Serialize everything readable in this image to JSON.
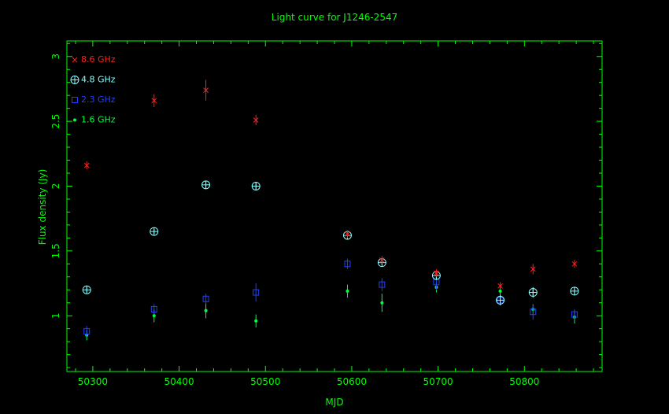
{
  "chart_data": {
    "type": "scatter",
    "title": "Light curve for J1246-2547",
    "xlabel": "MJD",
    "ylabel": "Flux density (Jy)",
    "xlim": [
      50270,
      50890
    ],
    "ylim": [
      0.57,
      3.12
    ],
    "xticks": [
      50300,
      50400,
      50500,
      50600,
      50700,
      50800
    ],
    "yticks": [
      1,
      1.5,
      2,
      2.5,
      3
    ],
    "x_tick_labels": [
      "50300",
      "50400",
      "50500",
      "50600",
      "50700",
      "50800"
    ],
    "y_tick_labels": [
      "1",
      "1.5",
      "2",
      "2.5",
      "3"
    ],
    "legend_position": "top-left",
    "colors": {
      "axes": "#00ff00",
      "background": "#000000"
    },
    "series": [
      {
        "name": "8.6 GHz",
        "color": "#ff2020",
        "marker": "x",
        "points": [
          {
            "x": 50293,
            "y": 2.16,
            "err": 0.03
          },
          {
            "x": 50371,
            "y": 2.66,
            "err": 0.05
          },
          {
            "x": 50431,
            "y": 2.74,
            "err": 0.08
          },
          {
            "x": 50489,
            "y": 2.51,
            "err": 0.04
          },
          {
            "x": 50595,
            "y": 1.63,
            "err": 0.03
          },
          {
            "x": 50635,
            "y": 1.43,
            "err": 0.03
          },
          {
            "x": 50698,
            "y": 1.33,
            "err": 0.03
          },
          {
            "x": 50772,
            "y": 1.23,
            "err": 0.03
          },
          {
            "x": 50810,
            "y": 1.36,
            "err": 0.04
          },
          {
            "x": 50858,
            "y": 1.4,
            "err": 0.03
          }
        ]
      },
      {
        "name": "4.8 GHz",
        "color": "#80ffff",
        "marker": "circle-plus",
        "points": [
          {
            "x": 50293,
            "y": 1.2,
            "err": 0.02
          },
          {
            "x": 50371,
            "y": 1.65,
            "err": 0.02
          },
          {
            "x": 50431,
            "y": 2.01,
            "err": 0.02
          },
          {
            "x": 50489,
            "y": 2.0,
            "err": 0.03
          },
          {
            "x": 50595,
            "y": 1.62,
            "err": 0.02
          },
          {
            "x": 50635,
            "y": 1.41,
            "err": 0.02
          },
          {
            "x": 50698,
            "y": 1.31,
            "err": 0.03
          },
          {
            "x": 50772,
            "y": 1.12,
            "err": 0.04
          },
          {
            "x": 50810,
            "y": 1.18,
            "err": 0.04
          },
          {
            "x": 50858,
            "y": 1.19,
            "err": 0.03
          }
        ]
      },
      {
        "name": "2.3 GHz",
        "color": "#2040ff",
        "marker": "square",
        "points": [
          {
            "x": 50293,
            "y": 0.88,
            "err": 0.04
          },
          {
            "x": 50371,
            "y": 1.05,
            "err": 0.04
          },
          {
            "x": 50431,
            "y": 1.13,
            "err": 0.04
          },
          {
            "x": 50489,
            "y": 1.18,
            "err": 0.07
          },
          {
            "x": 50595,
            "y": 1.4,
            "err": 0.04
          },
          {
            "x": 50635,
            "y": 1.24,
            "err": 0.05
          },
          {
            "x": 50698,
            "y": 1.26,
            "err": 0.06
          },
          {
            "x": 50772,
            "y": 1.12,
            "err": 0.03
          },
          {
            "x": 50810,
            "y": 1.03,
            "err": 0.06
          },
          {
            "x": 50858,
            "y": 1.01,
            "err": 0.04
          }
        ]
      },
      {
        "name": "1.6 GHz",
        "color": "#00ff40",
        "marker": "dot",
        "points": [
          {
            "x": 50293,
            "y": 0.85,
            "err": 0.04
          },
          {
            "x": 50371,
            "y": 1.0,
            "err": 0.05
          },
          {
            "x": 50431,
            "y": 1.04,
            "err": 0.06
          },
          {
            "x": 50489,
            "y": 0.96,
            "err": 0.05
          },
          {
            "x": 50595,
            "y": 1.19,
            "err": 0.05
          },
          {
            "x": 50635,
            "y": 1.1,
            "err": 0.07
          },
          {
            "x": 50698,
            "y": 1.22,
            "err": 0.04
          },
          {
            "x": 50772,
            "y": 1.19,
            "err": 0.04
          },
          {
            "x": 50810,
            "y": 1.05,
            "err": 0.04
          },
          {
            "x": 50858,
            "y": 0.99,
            "err": 0.05
          }
        ]
      }
    ]
  }
}
